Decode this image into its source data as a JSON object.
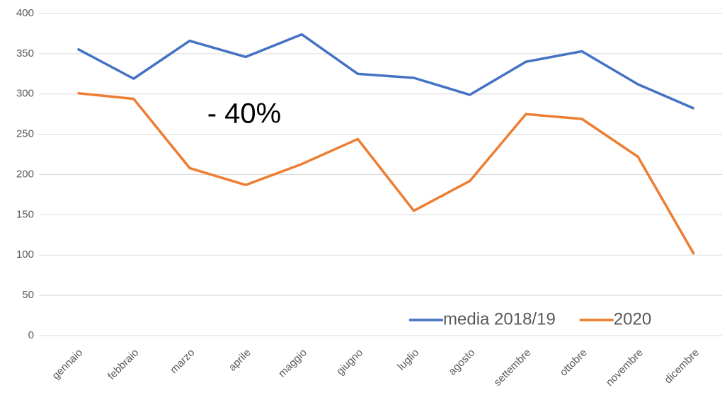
{
  "chart_data": {
    "type": "line",
    "categories": [
      "gennaio",
      "febbraio",
      "marzo",
      "aprile",
      "maggio",
      "giugno",
      "luglio",
      "agosto",
      "settembre",
      "ottobre",
      "novembre",
      "dicembre"
    ],
    "series": [
      {
        "name": "media 2018/19",
        "color": "#4472c4",
        "values": [
          356,
          319,
          366,
          346,
          374,
          325,
          320,
          299,
          340,
          353,
          312,
          282
        ]
      },
      {
        "name": "2020",
        "color": "#ed7d31",
        "values": [
          301,
          294,
          208,
          187,
          213,
          244,
          155,
          192,
          275,
          269,
          222,
          101
        ]
      }
    ],
    "annotation": "- 40%",
    "ylim": [
      0,
      400
    ],
    "yticks": [
      0,
      50,
      100,
      150,
      200,
      250,
      300,
      350,
      400
    ],
    "grid": true,
    "legend": "lower right"
  }
}
